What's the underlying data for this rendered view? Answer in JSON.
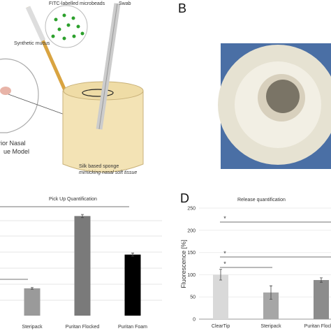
{
  "figure": {
    "panel_b": "B",
    "panel_d": "D",
    "illustration": {
      "beads": "FITC-labelled microbeads",
      "swab": "Swab",
      "mucus": "Synthetic mucus",
      "model_1": "rior Nasal",
      "model_2": "ue Model",
      "sponge": "Silk based sponge",
      "sponge_note": "mimicking nasal soft tissue"
    }
  },
  "chart_data": [
    {
      "type": "bar",
      "title": "Pick Up Quantification",
      "categories": [
        "Steripack",
        "Puritan Flocked",
        "Puritan Foam"
      ],
      "values": [
        1.7,
        6.2,
        3.8
      ],
      "errors": [
        0.05,
        0.1,
        0.1
      ],
      "colors": [
        "#9a9a9a",
        "#7a7a7a",
        "#000000"
      ],
      "ylim": [
        0,
        6.5
      ]
    },
    {
      "type": "bar",
      "title": "Release quantification",
      "y_label": "Fluorescence [%]",
      "categories": [
        "ClearTip",
        "Steripack",
        "Puritan Flocked"
      ],
      "values": [
        100,
        60,
        88
      ],
      "errors": [
        12,
        15,
        5
      ],
      "colors": [
        "#d9d9d9",
        "#a6a6a6",
        "#8c8c8c"
      ],
      "ylim": [
        0,
        250
      ],
      "yticks": [
        0,
        50,
        100,
        150,
        200,
        250
      ],
      "annotations": [
        "*",
        "*",
        "*"
      ]
    }
  ]
}
